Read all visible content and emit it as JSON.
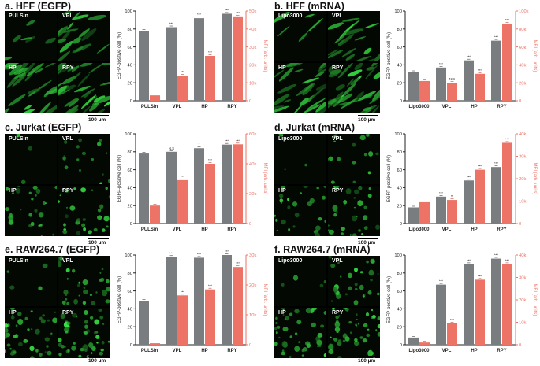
{
  "colors": {
    "gray_bar": "#7a7d80",
    "red_bar": "#ec7366",
    "left_axis": "#222222",
    "right_axis": "#ec7366"
  },
  "scale_bar": "100 µm",
  "panels": [
    {
      "title": "a. HFF (EGFP)",
      "tiles": [
        "PULSin",
        "VPL",
        "HP",
        "RPY"
      ]
    },
    {
      "title": "b. HFF (mRNA)",
      "tiles": [
        "Lipo3000",
        "VPL",
        "HP",
        "RPY"
      ]
    },
    {
      "title": "c. Jurkat (EGFP)",
      "tiles": [
        "PULSin",
        "VPL",
        "HP",
        "RPY"
      ]
    },
    {
      "title": "d. Jurkat (mRNA)",
      "tiles": [
        "Lipo3000",
        "VPL",
        "HP",
        "RPY"
      ]
    },
    {
      "title": "e. RAW264.7 (EGFP)",
      "tiles": [
        "PULSin",
        "VPL",
        "HP",
        "RPY"
      ]
    },
    {
      "title": "f. RAW264.7 (mRNA)",
      "tiles": [
        "Lipo3000",
        "VPL",
        "HP",
        "RPY"
      ]
    }
  ],
  "chart_data": [
    {
      "type": "bar",
      "ylabel": "EGFP-positive cell (%)",
      "y2label": "MFI (arb. units)",
      "categories": [
        "PULSin",
        "VPL",
        "HP",
        "RPY"
      ],
      "ylim": [
        0,
        100
      ],
      "yticks": [
        "0",
        "20",
        "40",
        "60",
        "80",
        "100"
      ],
      "y2lim": [
        0,
        50000
      ],
      "y2ticks": [
        "0",
        "10k",
        "20k",
        "30k",
        "40k",
        "50k"
      ],
      "series": [
        {
          "values": [
            78,
            82,
            92,
            97
          ]
        },
        {
          "values": [
            3000,
            14000,
            25000,
            47000
          ]
        }
      ],
      "gray_sig": [
        "",
        "***",
        "***",
        "***"
      ],
      "red_sig": [
        "",
        "***",
        "***",
        "***"
      ]
    },
    {
      "type": "bar",
      "ylabel": "EGFP-positive cell (%)",
      "y2label": "MFI (arb. units)",
      "categories": [
        "Lipo3000",
        "VPL",
        "HP",
        "RPY"
      ],
      "ylim": [
        0,
        100
      ],
      "yticks": [
        "0",
        "20",
        "40",
        "60",
        "80",
        "100"
      ],
      "y2lim": [
        0,
        100000
      ],
      "y2ticks": [
        "0",
        "20k",
        "40k",
        "60k",
        "80k",
        "100k"
      ],
      "series": [
        {
          "values": [
            32,
            37,
            45,
            67
          ]
        },
        {
          "values": [
            22000,
            20000,
            30000,
            86000
          ]
        }
      ],
      "gray_sig": [
        "",
        "***",
        "***",
        "***"
      ],
      "red_sig": [
        "",
        "N.S",
        "***",
        "***"
      ]
    },
    {
      "type": "bar",
      "ylabel": "EGFP-positive cell (%)",
      "y2label": "MFI (arb. units)",
      "categories": [
        "PULSin",
        "VPL",
        "HP",
        "RPY"
      ],
      "ylim": [
        0,
        100
      ],
      "yticks": [
        "0",
        "20",
        "40",
        "60",
        "80",
        "100"
      ],
      "y2lim": [
        0,
        60000
      ],
      "y2ticks": [
        "0",
        "20k",
        "40k",
        "60k"
      ],
      "series": [
        {
          "values": [
            78,
            80,
            84,
            88
          ]
        },
        {
          "values": [
            12000,
            29000,
            40000,
            53000
          ]
        }
      ],
      "gray_sig": [
        "",
        "N.S",
        "*",
        "***"
      ],
      "red_sig": [
        "",
        "***",
        "***",
        "***"
      ]
    },
    {
      "type": "bar",
      "ylabel": "EGFP-positive cell (%)",
      "y2label": "MFI (arb. units)",
      "categories": [
        "Lipo3000",
        "VPL",
        "HP",
        "RPY"
      ],
      "ylim": [
        0,
        100
      ],
      "yticks": [
        "0",
        "20",
        "40",
        "60",
        "80",
        "100"
      ],
      "y2lim": [
        0,
        40000
      ],
      "y2ticks": [
        "0",
        "10k",
        "20k",
        "30k",
        "40k"
      ],
      "series": [
        {
          "values": [
            18,
            30,
            48,
            63
          ]
        },
        {
          "values": [
            9500,
            10500,
            24000,
            36000
          ]
        }
      ],
      "gray_sig": [
        "",
        "***",
        "***",
        "***"
      ],
      "red_sig": [
        "",
        "**",
        "***",
        "***"
      ]
    },
    {
      "type": "bar",
      "ylabel": "EGFP-positive cell (%)",
      "y2label": "MFI (arb. units)",
      "categories": [
        "PULSin",
        "VPL",
        "HP",
        "RPY"
      ],
      "ylim": [
        0,
        100
      ],
      "yticks": [
        "0",
        "20",
        "40",
        "60",
        "80",
        "100"
      ],
      "y2lim": [
        0,
        30000
      ],
      "y2ticks": [
        "0",
        "10k",
        "20k",
        "30k"
      ],
      "series": [
        {
          "values": [
            49,
            98,
            97,
            100
          ]
        },
        {
          "values": [
            500,
            16500,
            18500,
            26000
          ]
        }
      ],
      "gray_sig": [
        "",
        "***",
        "***",
        "***"
      ],
      "red_sig": [
        "",
        "***",
        "***",
        "***"
      ]
    },
    {
      "type": "bar",
      "ylabel": "EGFP-positive cell (%)",
      "y2label": "MFI (arb. units)",
      "categories": [
        "Lipo3000",
        "VPL",
        "HP",
        "RPY"
      ],
      "ylim": [
        0,
        100
      ],
      "yticks": [
        "0",
        "20",
        "40",
        "60",
        "80",
        "100"
      ],
      "y2lim": [
        0,
        40000
      ],
      "y2ticks": [
        "0",
        "10k",
        "20k",
        "30k",
        "40k"
      ],
      "series": [
        {
          "values": [
            8,
            67,
            90,
            96
          ]
        },
        {
          "values": [
            1000,
            9500,
            29000,
            36000
          ]
        }
      ],
      "gray_sig": [
        "",
        "***",
        "***",
        "***"
      ],
      "red_sig": [
        "",
        "***",
        "***",
        "***"
      ]
    }
  ]
}
